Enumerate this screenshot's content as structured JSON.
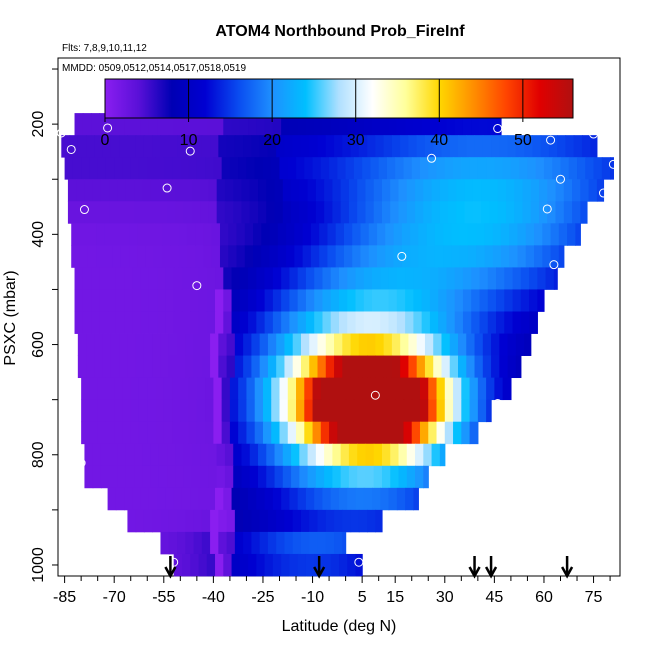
{
  "chart_data": {
    "type": "heatmap",
    "title": "ATOM4 Northbound Prob_FireInf",
    "subtitle_flights": "Flts: 7,8,9,10,11,12",
    "subtitle_dates": "MMDD: 0509,0512,0514,0517,0518,0519",
    "xlabel": "Latitude (deg N)",
    "ylabel": "PSXC (mbar)",
    "xlim": [
      -87,
      83
    ],
    "ylim": [
      1020,
      80
    ],
    "x_tick_labels": [
      "-85",
      "-70",
      "-55",
      "-40",
      "-25",
      "-10",
      "5",
      "15",
      "30",
      "45",
      "60",
      "75"
    ],
    "y_tick_labels": [
      "200",
      "400",
      "600",
      "800",
      "1000"
    ],
    "colorbar": {
      "range": [
        0,
        56
      ],
      "tick_labels": [
        "0",
        "10",
        "20",
        "30",
        "40",
        "50"
      ],
      "colors": [
        "#8a1ef0",
        "#5a10d8",
        "#0000b4",
        "#0000d2",
        "#0a4cf0",
        "#1e90ff",
        "#00bfff",
        "#b0e0ff",
        "#ffffff",
        "#ffff9a",
        "#ffd700",
        "#ff9000",
        "#ff4500",
        "#e00000",
        "#b01010"
      ]
    },
    "field_description": "Probability of fire influence vs latitude and pressure, maximum ~55 near 8N, 700 mbar",
    "rows": [
      {
        "p": 200,
        "x0": -82,
        "x1": 47
      },
      {
        "p": 240,
        "x0": -86,
        "x1": 76
      },
      {
        "p": 280,
        "x0": -85,
        "x1": 81
      },
      {
        "p": 320,
        "x0": -84,
        "x1": 78
      },
      {
        "p": 360,
        "x0": -84,
        "x1": 73
      },
      {
        "p": 400,
        "x0": -83,
        "x1": 71
      },
      {
        "p": 440,
        "x0": -83,
        "x1": 66
      },
      {
        "p": 480,
        "x0": -82,
        "x1": 64
      },
      {
        "p": 520,
        "x0": -82,
        "x1": 60
      },
      {
        "p": 560,
        "x0": -82,
        "x1": 58
      },
      {
        "p": 600,
        "x0": -81,
        "x1": 56
      },
      {
        "p": 640,
        "x0": -81,
        "x1": 53
      },
      {
        "p": 680,
        "x0": -80,
        "x1": 50
      },
      {
        "p": 720,
        "x0": -80,
        "x1": 44
      },
      {
        "p": 760,
        "x0": -80,
        "x1": 40
      },
      {
        "p": 800,
        "x0": -79,
        "x1": 30
      },
      {
        "p": 840,
        "x0": -79,
        "x1": 25
      },
      {
        "p": 880,
        "x0": -72,
        "x1": 22
      },
      {
        "p": 920,
        "x0": -66,
        "x1": 11
      },
      {
        "p": 960,
        "x0": -56,
        "x1": 0
      },
      {
        "p": 1000,
        "x0": -52,
        "x1": 5
      }
    ],
    "flight_points": [
      {
        "lat": -86,
        "p": 216
      },
      {
        "lat": -83,
        "p": 246
      },
      {
        "lat": -79,
        "p": 355
      },
      {
        "lat": -80,
        "p": 815
      },
      {
        "lat": -72,
        "p": 207
      },
      {
        "lat": -54,
        "p": 316
      },
      {
        "lat": -47,
        "p": 249
      },
      {
        "lat": -45,
        "p": 493
      },
      {
        "lat": 9,
        "p": 692
      },
      {
        "lat": 17,
        "p": 440
      },
      {
        "lat": 26,
        "p": 262
      },
      {
        "lat": 46,
        "p": 208
      },
      {
        "lat": 46,
        "p": 707
      },
      {
        "lat": 60,
        "p": 691
      },
      {
        "lat": 62,
        "p": 229
      },
      {
        "lat": 61,
        "p": 354
      },
      {
        "lat": 63,
        "p": 455
      },
      {
        "lat": 65,
        "p": 300
      },
      {
        "lat": 75,
        "p": 218
      },
      {
        "lat": 78,
        "p": 325
      },
      {
        "lat": 81,
        "p": 273
      },
      {
        "lat": -52,
        "p": 995
      },
      {
        "lat": 4,
        "p": 995
      }
    ],
    "arrows_lat": [
      -53,
      -8,
      39,
      44,
      67
    ]
  }
}
